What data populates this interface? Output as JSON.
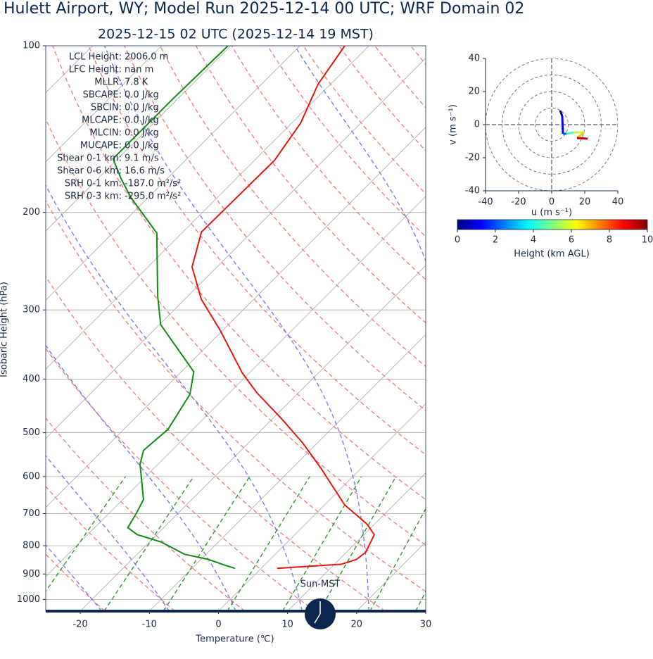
{
  "chart_data": [
    {
      "type": "skewt",
      "title": "Hulett Airport, WY; Model Run 2025-12-14 00 UTC; WRF Domain 02",
      "subtitle": "2025-12-15 02 UTC  (2025-12-14 19 MST)",
      "xlabel": "Temperature (℃)",
      "ylabel": "Isobaric Height (hPa)",
      "xlim": [
        -25,
        30
      ],
      "ylim": [
        1050,
        100
      ],
      "log_y": true,
      "xticks": [
        -20,
        -10,
        0,
        10,
        20,
        30
      ],
      "yticks": [
        100,
        200,
        300,
        400,
        500,
        600,
        700,
        800,
        900,
        1000
      ],
      "grid": true,
      "series": [
        {
          "color": "#e8160c",
          "pressure": [
            100,
            117.4,
            138,
            161,
            188,
            217,
            251,
            287,
            327,
            390,
            423,
            471,
            522,
            579,
            675,
            731,
            764,
            822,
            847,
            864,
            879
          ],
          "values": [
            -63.5,
            -61.8,
            -58.7,
            -57.1,
            -57.2,
            -57.3,
            -53.6,
            -47.6,
            -40.3,
            -31.0,
            -26.1,
            -18.8,
            -12.1,
            -5.9,
            2.9,
            8.9,
            11.5,
            12.8,
            12.5,
            11.0,
            2.3
          ]
        },
        {
          "color": "#138a13",
          "pressure": [
            100,
            108,
            124.5,
            144,
            160,
            174,
            188,
            218,
            283,
            319,
            388,
            426,
            493,
            538,
            570,
            660,
            696,
            742,
            764,
            787,
            829,
            847,
            867,
            879
          ],
          "values": [
            -80.4,
            -80.5,
            -80.7,
            -80.7,
            -80.7,
            -76.6,
            -72.5,
            -63.6,
            -54.4,
            -49.8,
            -38.2,
            -35.5,
            -33.6,
            -34.1,
            -32.6,
            -27.0,
            -26.1,
            -25.2,
            -22.8,
            -18.4,
            -13.1,
            -8.9,
            -5.8,
            -3.8
          ]
        }
      ],
      "indices": [
        {
          "label": "LCL Height:",
          "value": "2006.0 m"
        },
        {
          "label": "LFC Height:",
          "value": "nan m"
        },
        {
          "label": "MLLR:",
          "value": "7.8 K"
        },
        {
          "label": "SBCAPE:",
          "value": "0.0 J/kg"
        },
        {
          "label": "SBCIN:",
          "value": "0.0 J/kg"
        },
        {
          "label": "MLCAPE:",
          "value": "0.0 J/kg"
        },
        {
          "label": "MLCIN:",
          "value": "0.0 J/kg"
        },
        {
          "label": "MUCAPE:",
          "value": "0.0 J/kg"
        },
        {
          "label": "Shear 0-1 km:",
          "value": "9.1 m/s"
        },
        {
          "label": "Shear 0-6 km:",
          "value": "16.6 m/s"
        },
        {
          "label": "SRH 0-1 km:",
          "value": "-187.0 m²/s²"
        },
        {
          "label": "SRH 0-3 km:",
          "value": "-295.0 m²/s²"
        }
      ],
      "sun_label": "Sun-MST"
    },
    {
      "type": "hodograph",
      "xlabel": "u (m s⁻¹)",
      "ylabel": "v (m s⁻¹)",
      "xlim": [
        -40,
        40
      ],
      "ylim": [
        -40,
        40
      ],
      "xticks": [
        -40,
        -20,
        0,
        20,
        40
      ],
      "yticks": [
        -40,
        -20,
        0,
        20,
        40
      ],
      "u": [
        5.1,
        6.4,
        6.8,
        9.0,
        13.2,
        19.6,
        15.3,
        21.7
      ],
      "v": [
        8.5,
        5.1,
        -5.5,
        -5.5,
        -4.7,
        -4.7,
        -8.1,
        -8.5
      ],
      "colorbar": {
        "label": "Height (km AGL)",
        "lim": [
          0,
          10
        ],
        "ticks": [
          0,
          2,
          4,
          6,
          8,
          10
        ]
      }
    }
  ]
}
